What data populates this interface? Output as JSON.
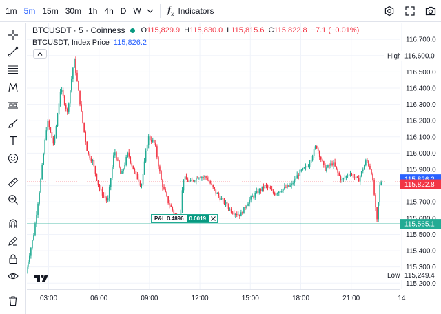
{
  "toolbar": {
    "timeframes": [
      "1m",
      "5m",
      "15m",
      "30m",
      "1h",
      "4h",
      "D",
      "W"
    ],
    "active_timeframe": "5m",
    "indicators_label": "Indicators"
  },
  "legend": {
    "symbol": "BTCUSDT · 5 · Coinness",
    "open_key": "O",
    "open": "115,829.9",
    "high_key": "H",
    "high": "115,830.0",
    "low_key": "L",
    "low": "115,815.6",
    "close_key": "C",
    "close": "115,822.8",
    "change": "−7.1 (−0.01%)",
    "index_label": "BTCUSDT, Index Price",
    "index_value": "115,826.2"
  },
  "price_axis": {
    "ticks": [
      "116,700.0",
      "116,600.0",
      "116,500.0",
      "116,400.0",
      "116,300.0",
      "116,200.0",
      "116,100.0",
      "116,000.0",
      "115,900.0",
      "115,800.0",
      "115,700.0",
      "115,600.0",
      "115,500.0",
      "115,400.0",
      "115,300.0",
      "115,200.0"
    ],
    "high_label": "High",
    "high_value": "116,600.0",
    "low_label": "Low",
    "low_value": "115,249.4",
    "index_marker": "115,826.2",
    "last_marker": "115,822.8",
    "position_marker": "115,565.1"
  },
  "time_axis": {
    "ticks": [
      "03:00",
      "06:00",
      "09:00",
      "12:00",
      "15:00",
      "18:00",
      "21:00",
      "14"
    ]
  },
  "position": {
    "pl_label": "P&L 0.4896",
    "quantity": "0.0019",
    "price": 115565.1
  },
  "colors": {
    "up": "#22ab94",
    "down": "#f23645",
    "accent": "#2962ff",
    "grid": "#f0f3fa",
    "position_line": "#22ab94",
    "last_line": "#f23645"
  },
  "chart_data": {
    "type": "candlestick",
    "symbol": "BTCUSDT",
    "interval": "5",
    "price_range": [
      115180,
      116760
    ],
    "anchors_time_hours": [
      1.7,
      2.2,
      2.6,
      3.0,
      3.4,
      3.8,
      4.2,
      4.6,
      4.9,
      5.1,
      5.4,
      5.7,
      6.1,
      6.6,
      7.0,
      7.4,
      7.8,
      8.2,
      8.6,
      9.0,
      9.4,
      9.8,
      10.2,
      10.6,
      10.9,
      11.1,
      11.5,
      12.0,
      12.5,
      13.0,
      13.5,
      14.0,
      14.5,
      15.0,
      15.5,
      16.0,
      16.5,
      17.0,
      17.5,
      18.0,
      18.5,
      19.0,
      19.5,
      20.0,
      20.5,
      21.0,
      21.5,
      22.0,
      22.3,
      22.5,
      22.6,
      22.8
    ],
    "anchors_price": [
      115260,
      115500,
      115820,
      116200,
      116050,
      116400,
      116250,
      116580,
      116350,
      116200,
      116000,
      115950,
      115780,
      115700,
      116020,
      115860,
      116000,
      115880,
      115800,
      116100,
      116060,
      115820,
      115700,
      115620,
      115600,
      115850,
      115820,
      115860,
      115850,
      115760,
      115700,
      115640,
      115620,
      115710,
      115760,
      115800,
      115750,
      115780,
      115800,
      115880,
      115920,
      116050,
      115900,
      115940,
      115830,
      115880,
      115830,
      115960,
      115880,
      115700,
      115560,
      115823
    ]
  }
}
